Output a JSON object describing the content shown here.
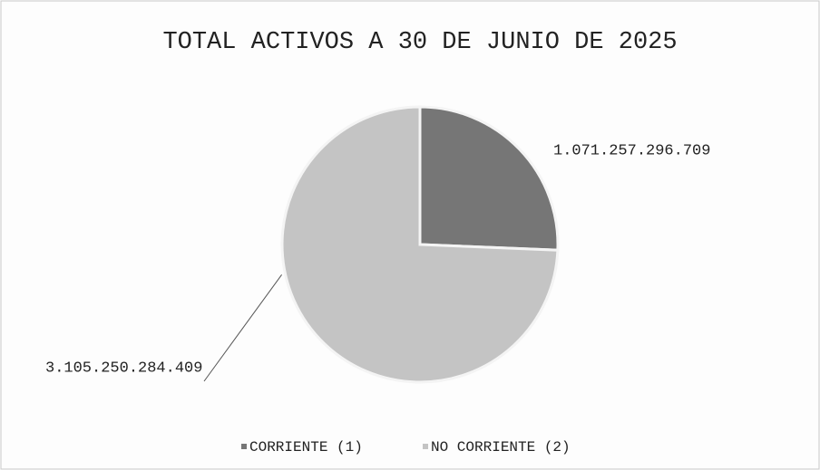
{
  "chart_data": {
    "type": "pie",
    "title": "TOTAL ACTIVOS A 30 DE JUNIO DE 2025",
    "categories": [
      "CORRIENTE (1)",
      "NO CORRIENTE (2)"
    ],
    "values": [
      1071257296709,
      3105250284409
    ],
    "value_labels": [
      "1.071.257.296.709",
      "3.105.250.284.409"
    ],
    "colors": [
      "#767676",
      "#c4c4c4"
    ],
    "legend": "bottom"
  }
}
